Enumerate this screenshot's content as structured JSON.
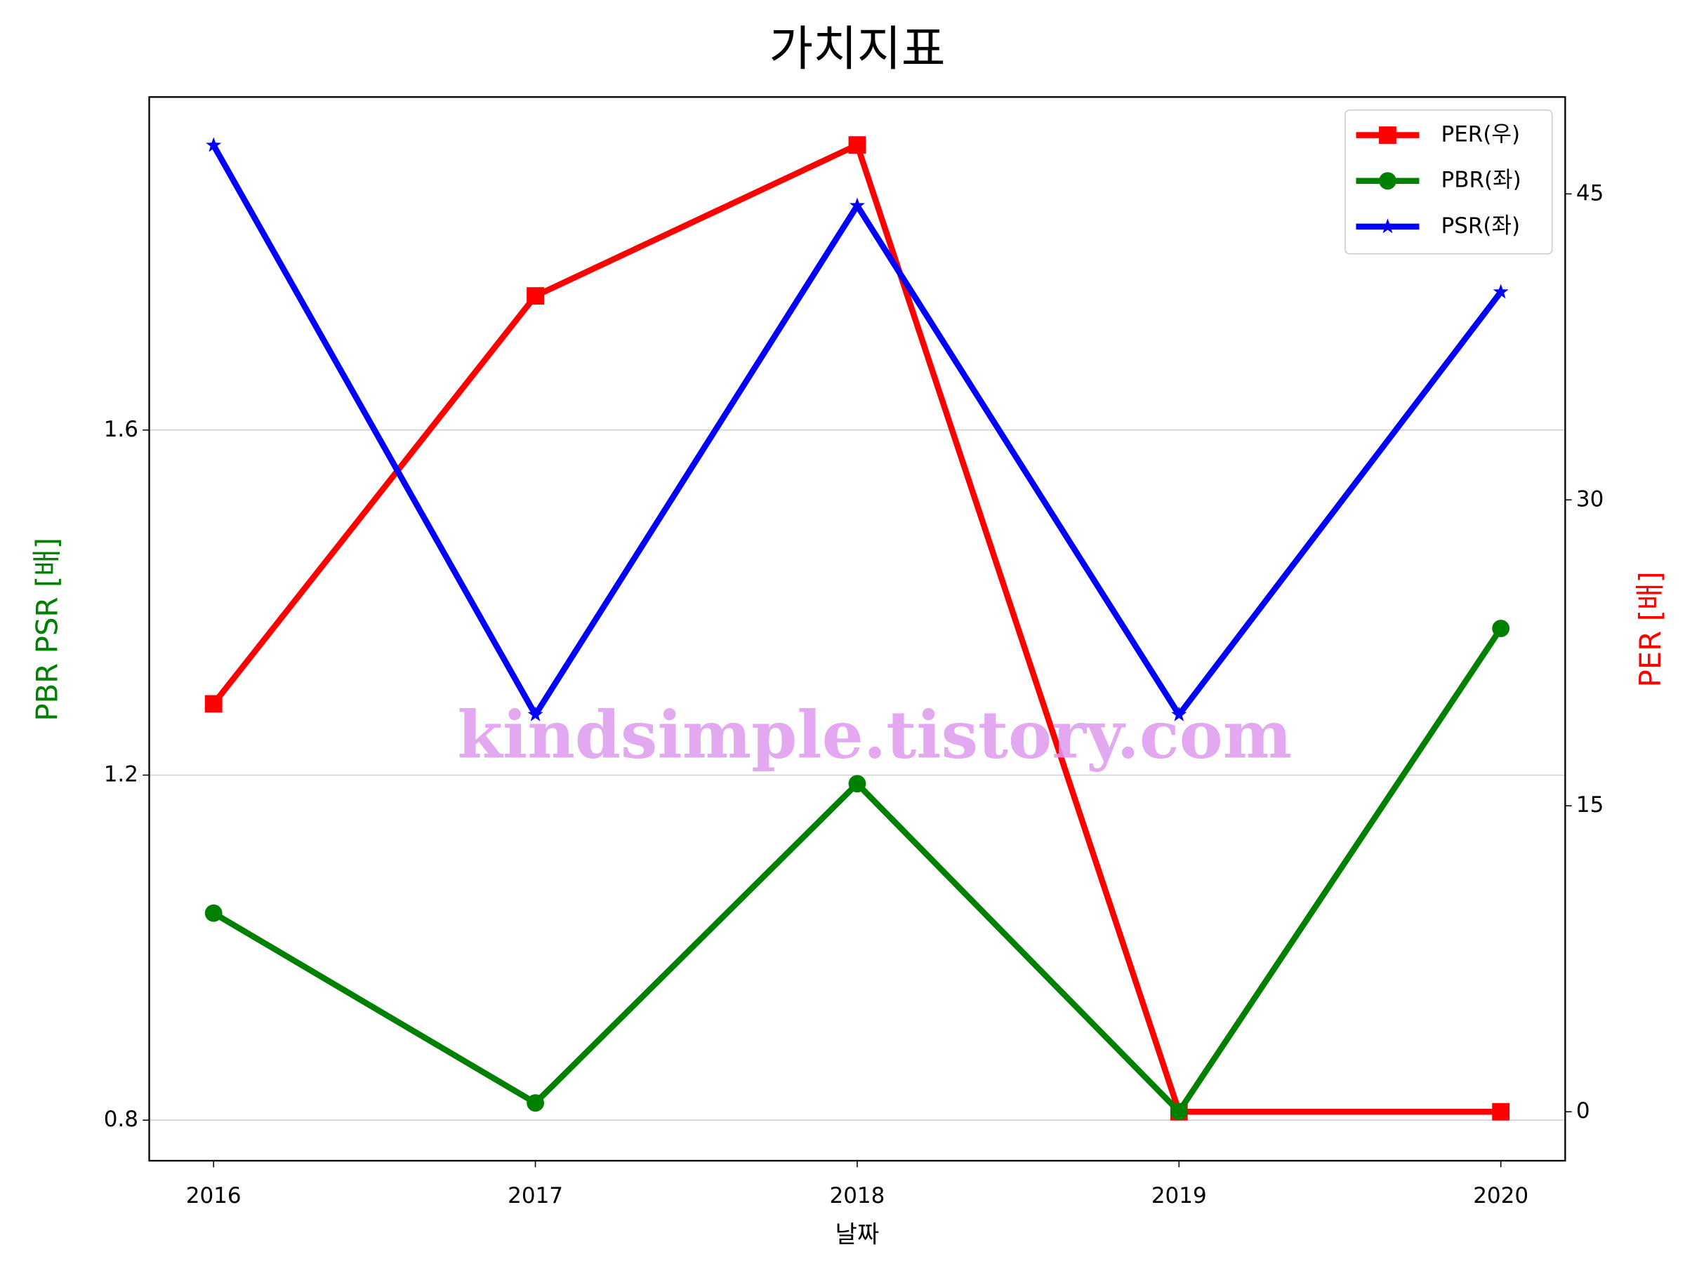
{
  "chart_data": {
    "type": "line",
    "title": "가치지표",
    "xlabel": "날짜",
    "ylabel": "PBR PSR [배]",
    "y2label": "PER [배]",
    "ylabel_color": "#008000",
    "y2label_color": "#ff0000",
    "annotation": "kindsimple.tistory.com",
    "x": [
      2016,
      2017,
      2018,
      2019,
      2020
    ],
    "xlim": [
      2015.8,
      2020.2
    ],
    "xticks": [
      2016,
      2017,
      2018,
      2019,
      2020
    ],
    "ylim": [
      0.753,
      1.986
    ],
    "yticks": [
      0.8,
      1.2,
      1.6
    ],
    "y2lim": [
      -2.4,
      49.75
    ],
    "y2ticks": [
      0,
      15,
      30,
      45
    ],
    "grid": true,
    "legend": "upper right",
    "series": [
      {
        "name": "PER(우)",
        "color": "#ff0000",
        "marker": "square",
        "axis": "y2",
        "values": [
          20,
          40,
          47.4,
          0,
          0
        ]
      },
      {
        "name": "PBR(좌)",
        "color": "#008000",
        "marker": "circle",
        "values": [
          1.04,
          0.82,
          1.19,
          0.81,
          1.37
        ]
      },
      {
        "name": "PSR(좌)",
        "color": "#0000ff",
        "marker": "star",
        "values": [
          1.93,
          1.27,
          1.86,
          1.27,
          1.76
        ]
      }
    ]
  }
}
